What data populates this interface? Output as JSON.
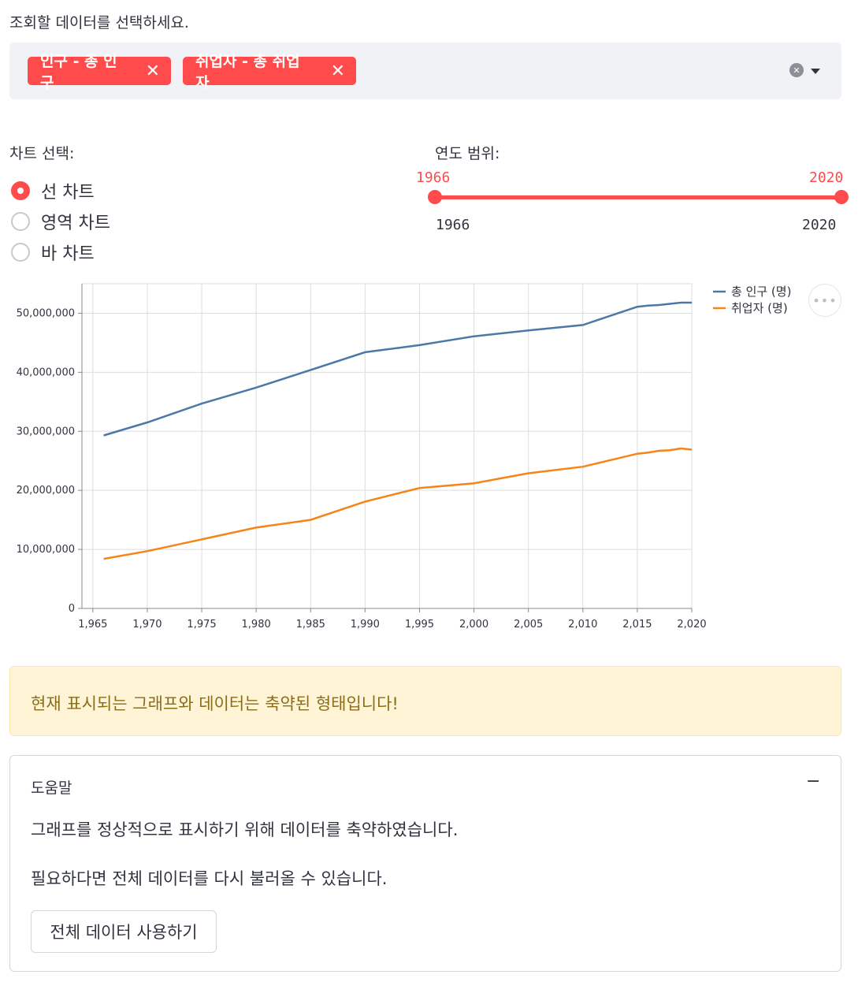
{
  "prompt": "조회할 데이터를 선택하세요.",
  "multiselect": {
    "tags": [
      {
        "label": "인구 - 총 인구",
        "remove": "✕"
      },
      {
        "label": "취업자 - 총 취업자",
        "remove": "✕"
      }
    ],
    "clear_icon": "✕"
  },
  "chart_select": {
    "label": "차트 선택:",
    "options": [
      "선 차트",
      "영역 차트",
      "바 차트"
    ],
    "selected": "선 차트"
  },
  "year_range": {
    "label": "연도 범위:",
    "min": "1966",
    "max": "2020",
    "value_low": "1966",
    "value_high": "2020",
    "accent": "#ff4b4b"
  },
  "chart_data": {
    "type": "line",
    "title": "",
    "xlabel": "",
    "ylabel": "",
    "xlim": [
      1964,
      2020
    ],
    "ylim": [
      0,
      55000000
    ],
    "x_ticks": [
      1965,
      1970,
      1975,
      1980,
      1985,
      1990,
      1995,
      2000,
      2005,
      2010,
      2015,
      2020
    ],
    "x_tick_labels": [
      "1,965",
      "1,970",
      "1,975",
      "1,980",
      "1,985",
      "1,990",
      "1,995",
      "2,000",
      "2,005",
      "2,010",
      "2,015",
      "2,020"
    ],
    "y_ticks": [
      0,
      10000000,
      20000000,
      30000000,
      40000000,
      50000000
    ],
    "y_tick_labels": [
      "0",
      "10,000,000",
      "20,000,000",
      "30,000,000",
      "40,000,000",
      "50,000,000"
    ],
    "grid": true,
    "legend_position": "top-right",
    "series": [
      {
        "name": "총 인구 (명)",
        "color": "#4c78a8",
        "points": [
          [
            1966,
            29300000
          ],
          [
            1970,
            31500000
          ],
          [
            1975,
            34700000
          ],
          [
            1980,
            37400000
          ],
          [
            1985,
            40400000
          ],
          [
            1990,
            43400000
          ],
          [
            1995,
            44600000
          ],
          [
            2000,
            46100000
          ],
          [
            2005,
            47100000
          ],
          [
            2010,
            48000000
          ],
          [
            2015,
            51100000
          ],
          [
            2016,
            51300000
          ],
          [
            2017,
            51400000
          ],
          [
            2018,
            51600000
          ],
          [
            2019,
            51800000
          ],
          [
            2020,
            51800000
          ]
        ]
      },
      {
        "name": "취업자 (명)",
        "color": "#f58518",
        "points": [
          [
            1966,
            8400000
          ],
          [
            1970,
            9700000
          ],
          [
            1975,
            11700000
          ],
          [
            1980,
            13700000
          ],
          [
            1985,
            15000000
          ],
          [
            1990,
            18100000
          ],
          [
            1995,
            20400000
          ],
          [
            2000,
            21200000
          ],
          [
            2005,
            22900000
          ],
          [
            2010,
            24000000
          ],
          [
            2015,
            26200000
          ],
          [
            2016,
            26400000
          ],
          [
            2017,
            26700000
          ],
          [
            2018,
            26800000
          ],
          [
            2019,
            27100000
          ],
          [
            2020,
            26900000
          ]
        ]
      }
    ]
  },
  "chart_menu_icon": "more-horizontal",
  "warning": "현재 표시되는 그래프와 데이터는 축약된 형태입니다!",
  "expander": {
    "title": "도움말",
    "toggle": "−",
    "line1": "그래프를 정상적으로 표시하기 위해 데이터를 축약하였습니다.",
    "line2": "필요하다면 전체 데이터를 다시 불러올 수 있습니다.",
    "button": "전체 데이터 사용하기"
  }
}
